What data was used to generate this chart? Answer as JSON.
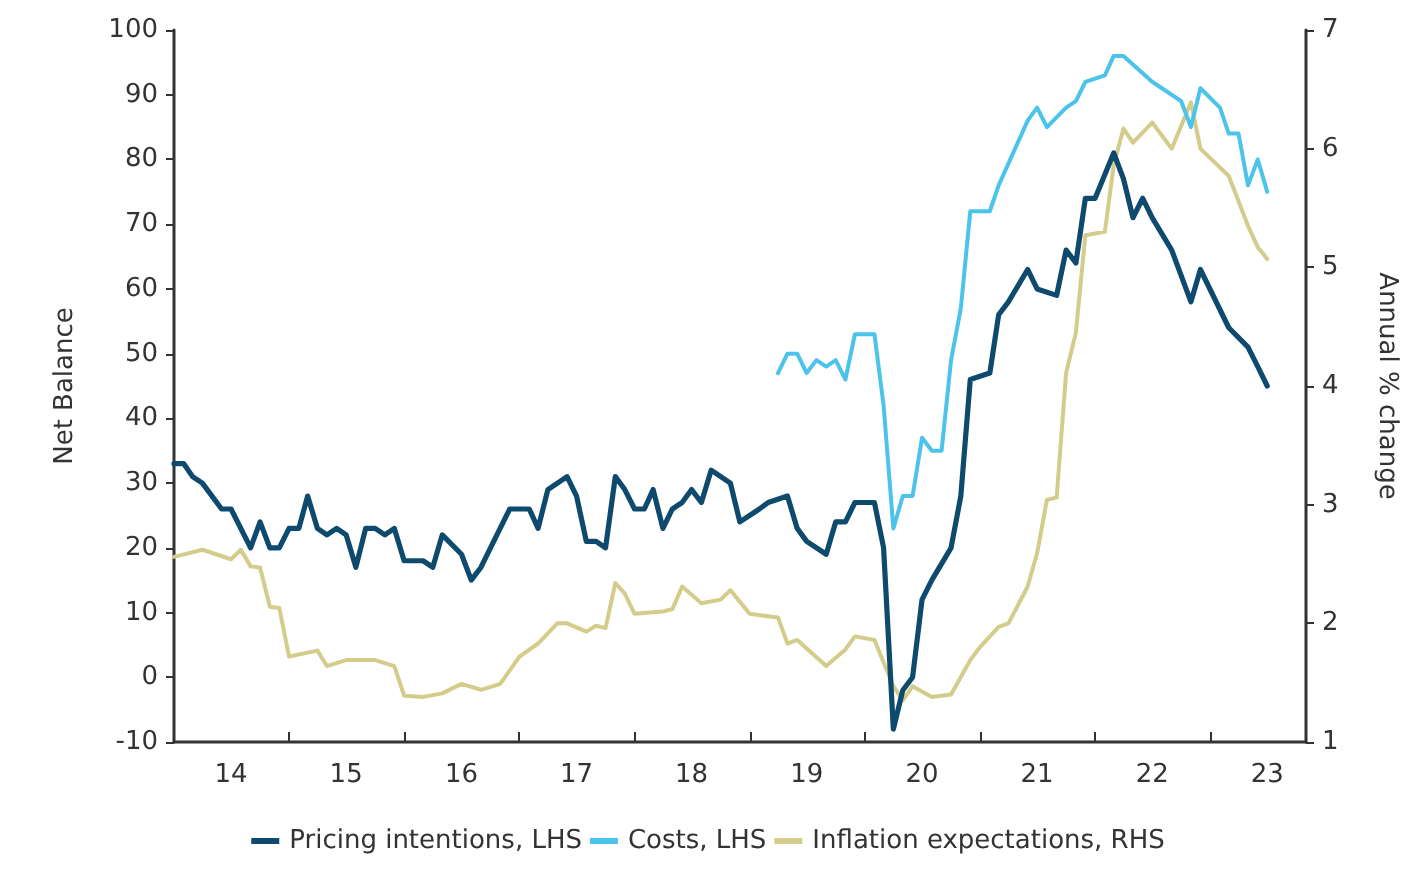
{
  "chart_data": {
    "type": "line",
    "ylabel": "Net Balance",
    "y2label": "Annual % change",
    "xlim": [
      "2014-01",
      "2023-11"
    ],
    "xticks": [
      {
        "value": "2014-07",
        "label": "14"
      },
      {
        "value": "2015",
        "label": null
      },
      {
        "value": "2015-07",
        "label": "15"
      },
      {
        "value": "2016",
        "label": null
      },
      {
        "value": "2016-07",
        "label": "16"
      },
      {
        "value": "2017",
        "label": null
      },
      {
        "value": "2017-07",
        "label": "17"
      },
      {
        "value": "2018",
        "label": null
      },
      {
        "value": "2018-07",
        "label": "18"
      },
      {
        "value": "2019",
        "label": null
      },
      {
        "value": "2019-07",
        "label": "19"
      },
      {
        "value": "2020",
        "label": null
      },
      {
        "value": "2020-07",
        "label": "20"
      },
      {
        "value": "2021",
        "label": null
      },
      {
        "value": "2021-07",
        "label": "21"
      },
      {
        "value": "2022",
        "label": null
      },
      {
        "value": "2022-07",
        "label": "22"
      },
      {
        "value": "2023",
        "label": null
      },
      {
        "value": "2023-07",
        "label": "23"
      }
    ],
    "ylim": [
      -10,
      100
    ],
    "yticks": [
      -10,
      0,
      10,
      20,
      30,
      40,
      50,
      60,
      70,
      80,
      90,
      100
    ],
    "y2lim": [
      1,
      7
    ],
    "y2ticks": [
      1,
      2,
      3,
      4,
      5,
      6,
      7
    ],
    "grid": false,
    "legend": "bottom",
    "marker": "none",
    "line_style": "solid",
    "series": [
      {
        "name": "Pricing intentions, LHS",
        "color": "#0e4a6e",
        "x": [
          "2014-01",
          "2014-02",
          "2014-03",
          "2014-04",
          "2014-06",
          "2014-07",
          "2014-09",
          "2014-10",
          "2014-11",
          "2014-12",
          "2015-01",
          "2015-02",
          "2015-03",
          "2015-04",
          "2015-05",
          "2015-06",
          "2015-07",
          "2015-08",
          "2015-09",
          "2015-10",
          "2015-11",
          "2015-12",
          "2016-01",
          "2016-03",
          "2016-04",
          "2016-05",
          "2016-07",
          "2016-08",
          "2016-09",
          "2016-10",
          "2016-12",
          "2017-02",
          "2017-03",
          "2017-04",
          "2017-06",
          "2017-07",
          "2017-08",
          "2017-09",
          "2017-10",
          "2017-11",
          "2017-12",
          "2018-01",
          "2018-02",
          "2018-03",
          "2018-04",
          "2018-05",
          "2018-06",
          "2018-07",
          "2018-08",
          "2018-09",
          "2018-11",
          "2018-12",
          "2019-02",
          "2019-03",
          "2019-05",
          "2019-06",
          "2019-07",
          "2019-09",
          "2019-10",
          "2019-11",
          "2019-12",
          "2020-02",
          "2020-03",
          "2020-04",
          "2020-05",
          "2020-06",
          "2020-07",
          "2020-08",
          "2020-10",
          "2020-11",
          "2020-12",
          "2021-02",
          "2021-03",
          "2021-04",
          "2021-06",
          "2021-07",
          "2021-09",
          "2021-10",
          "2021-11",
          "2021-12",
          "2022-01",
          "2022-03",
          "2022-04",
          "2022-05",
          "2022-06",
          "2022-07",
          "2022-09",
          "2022-11",
          "2022-12",
          "2023-03",
          "2023-05",
          "2023-06",
          "2023-07"
        ],
        "values": [
          33,
          33,
          31,
          30,
          26,
          26,
          20,
          24,
          20,
          20,
          23,
          23,
          28,
          23,
          22,
          23,
          22,
          17,
          23,
          23,
          22,
          23,
          18,
          18,
          17,
          22,
          19,
          15,
          17,
          20,
          26,
          26,
          23,
          29,
          31,
          28,
          21,
          21,
          20,
          31,
          29,
          26,
          26,
          29,
          23,
          26,
          27,
          29,
          27,
          32,
          30,
          24,
          26,
          27,
          28,
          23,
          21,
          19,
          24,
          24,
          27,
          27,
          20,
          -8,
          -2,
          0,
          12,
          15,
          20,
          28,
          46,
          47,
          56,
          58,
          63,
          60,
          59,
          66,
          64,
          74,
          74,
          81,
          77,
          71,
          74,
          71,
          66,
          58,
          63,
          54,
          51,
          48,
          45
        ]
      },
      {
        "name": "Costs, LHS",
        "color": "#4cc3ea",
        "x": [
          "2019-04",
          "2019-05",
          "2019-06",
          "2019-07",
          "2019-08",
          "2019-09",
          "2019-10",
          "2019-11",
          "2019-12",
          "2020-02",
          "2020-03",
          "2020-04",
          "2020-05",
          "2020-06",
          "2020-07",
          "2020-08",
          "2020-09",
          "2020-10",
          "2020-11",
          "2020-12",
          "2021-02",
          "2021-03",
          "2021-06",
          "2021-07",
          "2021-08",
          "2021-10",
          "2021-11",
          "2021-12",
          "2022-02",
          "2022-03",
          "2022-04",
          "2022-07",
          "2022-08",
          "2022-10",
          "2022-11",
          "2022-12",
          "2023-02",
          "2023-03",
          "2023-04",
          "2023-05",
          "2023-06",
          "2023-07"
        ],
        "values": [
          47,
          50,
          50,
          47,
          49,
          48,
          49,
          46,
          53,
          53,
          42,
          23,
          28,
          28,
          37,
          35,
          35,
          49,
          57,
          72,
          72,
          76,
          86,
          88,
          85,
          88,
          89,
          92,
          93,
          96,
          96,
          92,
          91,
          89,
          85,
          91,
          88,
          84,
          84,
          76,
          80,
          75
        ]
      },
      {
        "name": "Inflation expectations, RHS",
        "color": "#d4cc8a",
        "axis": "y2",
        "x": [
          "2014-01",
          "2014-04",
          "2014-07",
          "2014-08",
          "2014-09",
          "2014-10",
          "2014-11",
          "2014-12",
          "2015-01",
          "2015-04",
          "2015-05",
          "2015-07",
          "2015-10",
          "2015-12",
          "2016-01",
          "2016-03",
          "2016-05",
          "2016-07",
          "2016-09",
          "2016-11",
          "2017-01",
          "2017-03",
          "2017-05",
          "2017-06",
          "2017-08",
          "2017-09",
          "2017-10",
          "2017-11",
          "2017-12",
          "2018-01",
          "2018-04",
          "2018-05",
          "2018-06",
          "2018-08",
          "2018-10",
          "2018-11",
          "2019-01",
          "2019-04",
          "2019-05",
          "2019-06",
          "2019-09",
          "2019-11",
          "2019-12",
          "2020-02",
          "2020-04",
          "2020-05",
          "2020-06",
          "2020-08",
          "2020-10",
          "2020-12",
          "2021-01",
          "2021-03",
          "2021-04",
          "2021-06",
          "2021-07",
          "2021-08",
          "2021-09",
          "2021-10",
          "2021-11",
          "2021-12",
          "2022-02",
          "2022-03",
          "2022-04",
          "2022-05",
          "2022-07",
          "2022-09",
          "2022-11",
          "2022-12",
          "2023-03",
          "2023-05",
          "2023-06",
          "2023-07"
        ],
        "values": [
          2.56,
          2.62,
          2.54,
          2.62,
          2.48,
          2.47,
          2.14,
          2.13,
          1.72,
          1.77,
          1.64,
          1.69,
          1.69,
          1.64,
          1.39,
          1.38,
          1.41,
          1.49,
          1.44,
          1.49,
          1.72,
          1.83,
          2.0,
          2.0,
          1.93,
          1.98,
          1.96,
          2.34,
          2.25,
          2.08,
          2.1,
          2.12,
          2.31,
          2.17,
          2.2,
          2.28,
          2.08,
          2.05,
          1.83,
          1.86,
          1.64,
          1.78,
          1.89,
          1.86,
          1.47,
          1.35,
          1.47,
          1.38,
          1.4,
          1.69,
          1.8,
          1.97,
          2.0,
          2.31,
          2.59,
          3.04,
          3.06,
          4.11,
          4.45,
          5.27,
          5.3,
          5.86,
          6.17,
          6.05,
          6.22,
          6.0,
          6.39,
          6.0,
          5.77,
          5.35,
          5.17,
          5.07
        ]
      }
    ]
  }
}
